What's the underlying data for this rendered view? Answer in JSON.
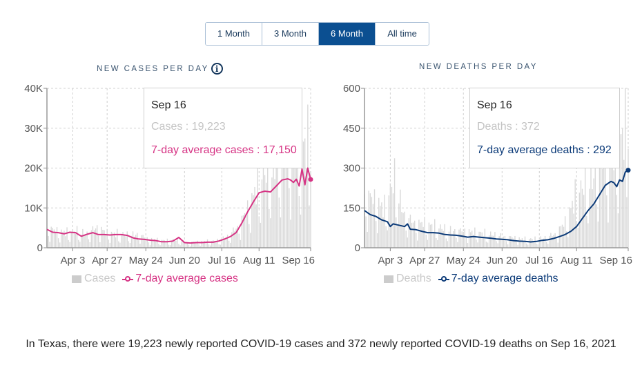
{
  "range_selector": {
    "options": [
      "1 Month",
      "3 Month",
      "6 Month",
      "All time"
    ],
    "selected": "6 Month"
  },
  "colors": {
    "cases_line": "#d63384",
    "deaths_line": "#0b3a78",
    "bars": "#d9d9d9",
    "active_button": "#0b4f91"
  },
  "summary": {
    "text": "In Texas, there were 19,223 newly reported COVID-19 cases and 372 newly reported COVID-19 deaths on Sep 16, 2021"
  },
  "chart_data": [
    {
      "type": "bar+line",
      "title": "NEW CASES PER DAY",
      "has_info_icon": true,
      "x_range": [
        "Mar 16",
        "Sep 16"
      ],
      "x_ticks": [
        "Apr 3",
        "Apr 27",
        "May 24",
        "Jun 20",
        "Jul 16",
        "Aug 11",
        "Sep 16"
      ],
      "x_tick_days": [
        18,
        42,
        69,
        96,
        122,
        148,
        184
      ],
      "y_ticks": [
        0,
        10000,
        20000,
        30000,
        40000
      ],
      "y_tick_labels": [
        "0",
        "10K",
        "20K",
        "30K",
        "40K"
      ],
      "ylim": [
        0,
        40000
      ],
      "grid": true,
      "series": [
        {
          "name": "Cases",
          "kind": "bar",
          "note": "daily values approximated",
          "days": [
            0,
            7,
            14,
            21,
            28,
            35,
            42,
            49,
            56,
            63,
            70,
            77,
            84,
            91,
            98,
            105,
            112,
            119,
            126,
            133,
            140,
            147,
            154,
            161,
            168,
            175,
            182,
            184
          ],
          "values": [
            4800,
            4000,
            3600,
            3900,
            3300,
            5000,
            3500,
            3300,
            3000,
            3200,
            2200,
            1800,
            1600,
            1800,
            1200,
            1400,
            1500,
            1600,
            2600,
            5000,
            9000,
            15000,
            18000,
            20000,
            24000,
            22000,
            25000,
            19223
          ]
        },
        {
          "name": "7-day average cases",
          "kind": "line",
          "days": [
            0,
            4,
            8,
            12,
            16,
            20,
            24,
            28,
            32,
            36,
            40,
            44,
            48,
            52,
            56,
            60,
            64,
            68,
            72,
            76,
            80,
            84,
            88,
            92,
            96,
            100,
            104,
            108,
            112,
            116,
            120,
            124,
            128,
            132,
            136,
            140,
            144,
            148,
            152,
            156,
            160,
            164,
            168,
            170,
            172,
            174,
            176,
            178,
            180,
            182,
            184
          ],
          "values": [
            4600,
            3900,
            3800,
            3500,
            3900,
            3800,
            2900,
            3400,
            3800,
            3300,
            3300,
            3200,
            3300,
            3300,
            3100,
            2500,
            2200,
            2100,
            1900,
            1800,
            1500,
            1500,
            1700,
            2600,
            1300,
            1200,
            1300,
            1300,
            1400,
            1400,
            1700,
            2200,
            2800,
            3800,
            6200,
            9000,
            11500,
            13800,
            14200,
            14000,
            15500,
            17000,
            17300,
            17000,
            16400,
            17200,
            15500,
            19800,
            15800,
            20000,
            17150
          ]
        }
      ],
      "legend": [
        "Cases",
        "7-day average cases"
      ],
      "legend_placement": "bottom",
      "tooltip": {
        "date": "Sep 16",
        "rows": [
          {
            "label": "Cases",
            "value": "19,223"
          },
          {
            "label": "7-day average cases",
            "value": "17,150"
          }
        ]
      }
    },
    {
      "type": "bar+line",
      "title": "NEW DEATHS PER DAY",
      "has_info_icon": false,
      "x_range": [
        "Mar 16",
        "Sep 16"
      ],
      "x_ticks": [
        "Apr 3",
        "Apr 27",
        "May 24",
        "Jun 20",
        "Jul 16",
        "Aug 11",
        "Sep 16"
      ],
      "x_tick_days": [
        18,
        42,
        69,
        96,
        122,
        148,
        184
      ],
      "y_ticks": [
        0,
        150,
        300,
        450,
        600
      ],
      "y_tick_labels": [
        "0",
        "150",
        "300",
        "450",
        "600"
      ],
      "ylim": [
        0,
        600
      ],
      "grid": true,
      "series": [
        {
          "name": "Deaths",
          "kind": "bar",
          "note": "daily values approximated",
          "days": [
            0,
            7,
            14,
            21,
            28,
            35,
            42,
            49,
            56,
            63,
            70,
            77,
            84,
            91,
            98,
            105,
            112,
            119,
            126,
            133,
            140,
            147,
            154,
            161,
            168,
            175,
            182,
            184
          ],
          "values": [
            190,
            170,
            140,
            240,
            110,
            90,
            85,
            75,
            65,
            60,
            60,
            55,
            50,
            45,
            40,
            35,
            30,
            30,
            35,
            50,
            90,
            180,
            220,
            260,
            310,
            330,
            420,
            372
          ]
        },
        {
          "name": "7-day average deaths",
          "kind": "line",
          "days": [
            0,
            4,
            8,
            12,
            16,
            18,
            20,
            24,
            28,
            30,
            32,
            36,
            40,
            44,
            48,
            52,
            56,
            60,
            64,
            68,
            72,
            76,
            80,
            84,
            88,
            92,
            96,
            100,
            104,
            108,
            112,
            116,
            120,
            124,
            128,
            132,
            136,
            140,
            144,
            148,
            152,
            156,
            160,
            164,
            168,
            172,
            174,
            176,
            178,
            180,
            182,
            184
          ],
          "values": [
            140,
            125,
            118,
            105,
            98,
            80,
            90,
            85,
            80,
            90,
            70,
            68,
            62,
            57,
            57,
            55,
            50,
            48,
            47,
            44,
            40,
            42,
            40,
            38,
            36,
            33,
            32,
            30,
            27,
            25,
            24,
            22,
            24,
            28,
            30,
            35,
            42,
            50,
            62,
            80,
            110,
            140,
            165,
            200,
            235,
            250,
            245,
            230,
            255,
            250,
            285,
            292
          ]
        }
      ],
      "legend": [
        "Deaths",
        "7-day average deaths"
      ],
      "legend_placement": "bottom",
      "tooltip": {
        "date": "Sep 16",
        "rows": [
          {
            "label": "Deaths",
            "value": "372"
          },
          {
            "label": "7-day average deaths",
            "value": "292"
          }
        ]
      }
    }
  ]
}
